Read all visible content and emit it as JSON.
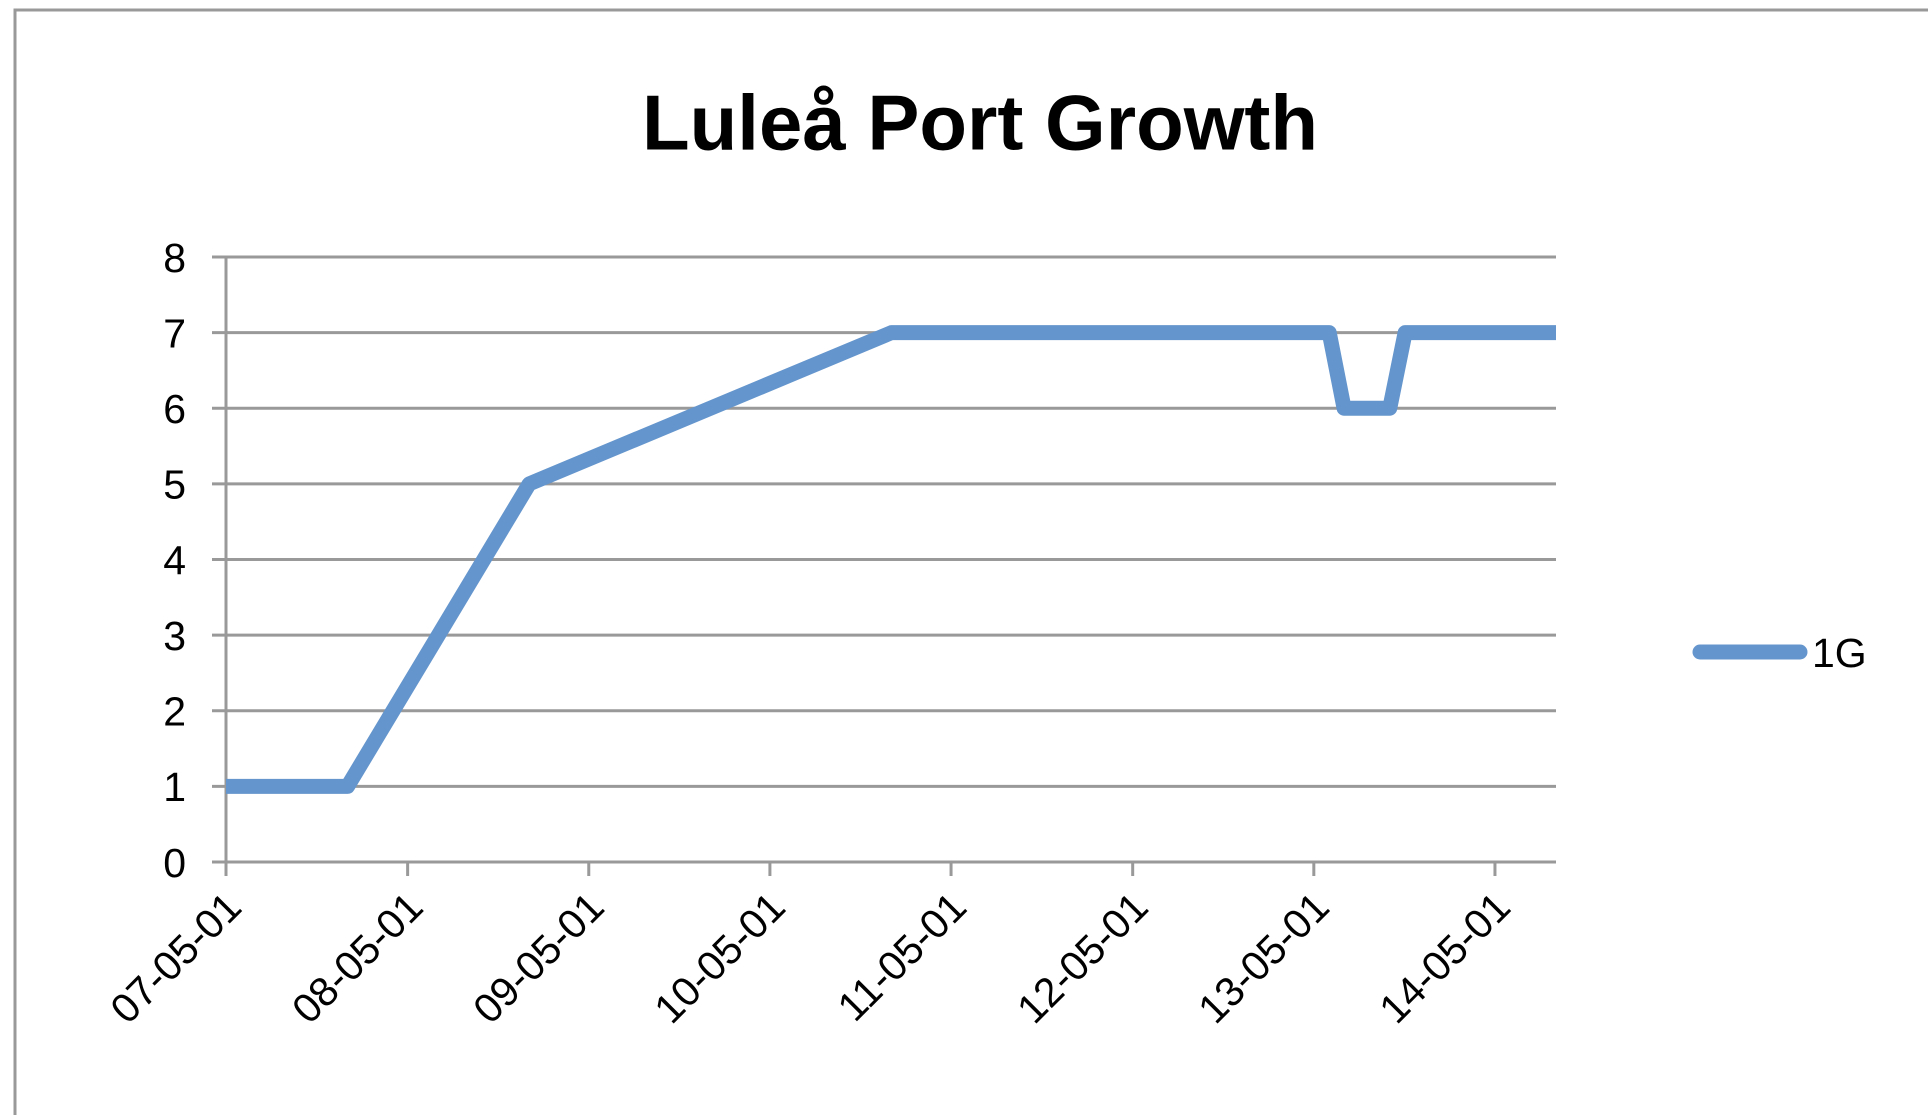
{
  "chart_data": {
    "type": "line",
    "title": "Luleå Port Growth",
    "x": [
      "07-05-01",
      "08-01-01",
      "09-01-01",
      "11-01-01",
      "13-06-01",
      "13-07-01",
      "13-10-01",
      "13-11-01",
      "14-09-01"
    ],
    "series": [
      {
        "name": "1G",
        "color": "#6495cc",
        "values": [
          1,
          1,
          5,
          7,
          7,
          6,
          6,
          7,
          7
        ]
      }
    ],
    "xlim": [
      "07-05-01",
      "14-09-01"
    ],
    "xticks": [
      "07-05-01",
      "08-05-01",
      "09-05-01",
      "10-05-01",
      "11-05-01",
      "12-05-01",
      "13-05-01",
      "14-05-01"
    ],
    "ylim": [
      0,
      8
    ],
    "yticks": [
      0,
      1,
      2,
      3,
      4,
      5,
      6,
      7,
      8
    ],
    "grid": true,
    "legend": "right"
  }
}
